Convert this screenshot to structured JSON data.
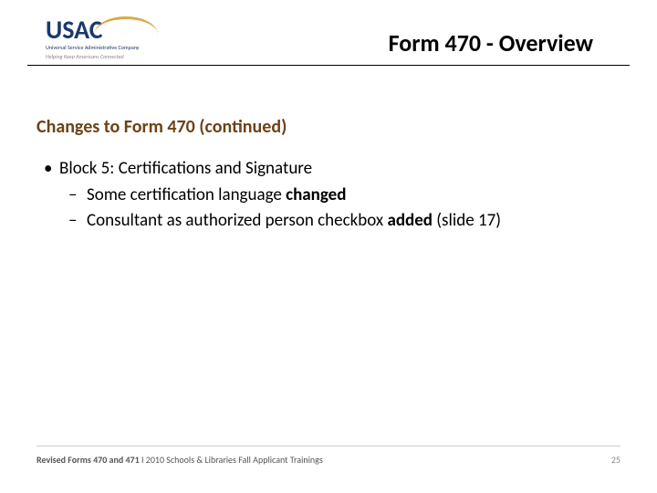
{
  "logo": {
    "main": "USAC",
    "subtitle": "Universal Service Administrative Company",
    "tagline": "Helping Keep Americans Connected"
  },
  "header": {
    "title": "Form 470 - Overview"
  },
  "section": {
    "title": "Changes to Form 470 (continued)"
  },
  "content": {
    "bullet1": "Block 5: Certifications and Signature",
    "sub1_pre": "Some certification language ",
    "sub1_bold": "changed",
    "sub2_pre": "Consultant as authorized person checkbox ",
    "sub2_bold": "added",
    "sub2_post": " (slide 17)"
  },
  "footer": {
    "text_bold": "Revised Forms 470 and 471",
    "text_rest": " I 2010 Schools & Libraries Fall Applicant Trainings",
    "page": "25"
  }
}
